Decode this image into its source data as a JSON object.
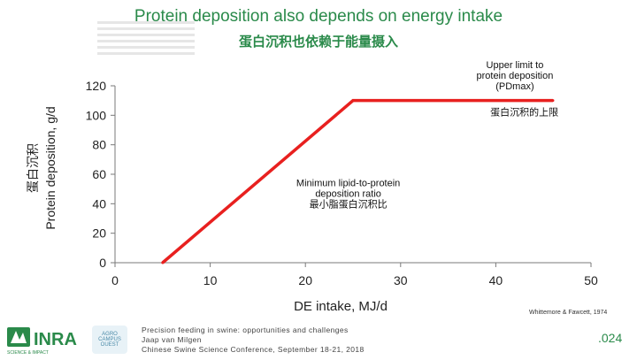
{
  "slide": {
    "title": "Protein deposition also depends on energy intake",
    "subtitle": "蛋白沉积也依赖于能量摄入",
    "footer_lines": [
      "Precision feeding in swine: opportunities and challenges",
      "Jaap van Milgen",
      "Chinese Swine Science Conference, September 18-21, 2018"
    ],
    "citation": "Whittemore & Fawcett, 1974",
    "page_number": ".024",
    "logo_text": "INRA",
    "logo_tagline": "SCIENCE & IMPACT",
    "campus_label": "AGRO CAMPUS OUEST"
  },
  "chart_data": {
    "type": "line",
    "series": [
      {
        "x": [
          5,
          25,
          46
        ],
        "y": [
          0,
          110,
          110
        ]
      }
    ],
    "xlabel": "DE intake, MJ/d",
    "ylabel": "Protein deposition, g/d",
    "ylabel_cn": "蛋白沉积",
    "xlim": [
      0,
      50
    ],
    "ylim": [
      0,
      120
    ],
    "x_ticks": [
      "0",
      "10",
      "20",
      "30",
      "40",
      "50"
    ],
    "y_ticks": [
      "0",
      "20",
      "40",
      "60",
      "80",
      "100",
      "120"
    ],
    "x_tick_values": [
      0,
      10,
      20,
      30,
      40,
      50
    ],
    "y_tick_values": [
      0,
      20,
      40,
      60,
      80,
      100,
      120
    ],
    "line_color": "#e8201f",
    "grid": false,
    "annotations": [
      {
        "lines": [
          "Upper limit to",
          "protein deposition",
          "(PDmax)"
        ],
        "x": 42,
        "y": 132
      },
      {
        "lines": [
          "蛋白沉积的上限"
        ],
        "x": 43,
        "y": 100
      },
      {
        "lines": [
          "Minimum lipid-to-protein",
          "deposition ratio",
          "最小脂蛋白沉积比"
        ],
        "x": 24.5,
        "y": 52
      }
    ]
  }
}
